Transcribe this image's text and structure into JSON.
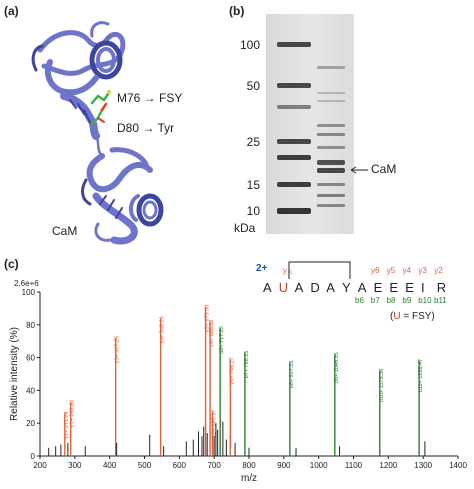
{
  "panels": {
    "a": "(a)",
    "b": "(b)",
    "c": "(c)"
  },
  "panel_a": {
    "protein_label": "CaM",
    "mutation1": "M76 → FSY",
    "mutation2": "D80 → Tyr",
    "colors": {
      "ribbon": "#6d74c9",
      "ribbon_dark": "#3e45a0",
      "side_carbon": "#3bb54a",
      "side_oxygen": "#e23b2e"
    }
  },
  "panel_b": {
    "marker_labels": [
      "100",
      "50",
      "25",
      "15",
      "10"
    ],
    "unit": "kDa",
    "band_label": "CaM"
  },
  "panel_c": {
    "sequence": [
      {
        "res": "A",
        "color": "#222222"
      },
      {
        "res": "U",
        "color": "#c0392b"
      },
      {
        "res": "A",
        "color": "#222222"
      },
      {
        "res": "D",
        "color": "#222222"
      },
      {
        "res": "A",
        "color": "#222222"
      },
      {
        "res": "Y",
        "color": "#222222"
      },
      {
        "res": "A",
        "color": "#222222"
      },
      {
        "res": "E",
        "color": "#222222"
      },
      {
        "res": "E",
        "color": "#222222"
      },
      {
        "res": "E",
        "color": "#222222"
      },
      {
        "res": "I",
        "color": "#222222"
      },
      {
        "res": "R",
        "color": "#222222"
      }
    ],
    "charge": "2+",
    "y_ion_top": "y₁₁",
    "y_ions": [
      "y6",
      "y5",
      "y4",
      "y3",
      "y2"
    ],
    "b_ions": [
      "b6",
      "b7",
      "b8",
      "b9",
      "b10",
      "b11"
    ],
    "legend_U": "U",
    "legend_rest": "= FSY)",
    "legend_open": "(",
    "colors": {
      "y": "#d9633a",
      "b": "#2e7d32",
      "other": "#222222",
      "charge": "#1f4fa3"
    }
  },
  "chart_data": {
    "type": "bar",
    "title": "",
    "xlabel": "m/z",
    "ylabel": "Relative intensity (%)",
    "scale_label": "2.6e+6",
    "xlim": [
      200,
      1400
    ],
    "ylim": [
      0,
      100
    ],
    "xticks": [
      200,
      300,
      400,
      500,
      600,
      700,
      800,
      900,
      1000,
      1100,
      1200,
      1300,
      1400
    ],
    "yticks": [
      0,
      20,
      40,
      60,
      80,
      100
    ],
    "peaks": [
      {
        "mz": 271.24,
        "y": 26,
        "label": "y1+ 271.24",
        "type": "y"
      },
      {
        "mz": 288.2,
        "y": 33,
        "label": "y1+ 288.20",
        "type": "y"
      },
      {
        "mz": 417.25,
        "y": 72,
        "label": "y3+ 417.25",
        "type": "y"
      },
      {
        "mz": 546.29,
        "y": 84,
        "label": "y4+ 546.29",
        "type": "y"
      },
      {
        "mz": 675.33,
        "y": 91,
        "label": "y5+ 675.33",
        "type": "y"
      },
      {
        "mz": 688.32,
        "y": 82,
        "label": "y6+ 688.32",
        "type": "y"
      },
      {
        "mz": 695.37,
        "y": 27,
        "label": "b5+ 695.37",
        "type": "y"
      },
      {
        "mz": 717.22,
        "y": 78,
        "label": "b6+ 717.22",
        "type": "b"
      },
      {
        "mz": 746.27,
        "y": 59,
        "label": "y6+ 746.27",
        "type": "y"
      },
      {
        "mz": 788.25,
        "y": 63,
        "label": "b7+ 788.25",
        "type": "b"
      },
      {
        "mz": 917.29,
        "y": 57,
        "label": "b8+ 917.29",
        "type": "b"
      },
      {
        "mz": 1046.35,
        "y": 62,
        "label": "b9+ 1046.35",
        "type": "b"
      },
      {
        "mz": 1175.38,
        "y": 52,
        "label": "b10+ 1175.38",
        "type": "b"
      },
      {
        "mz": 1288.47,
        "y": 58,
        "label": "b11+ 1288.47",
        "type": "b"
      },
      {
        "mz": 225,
        "y": 5,
        "label": "",
        "type": "other"
      },
      {
        "mz": 245,
        "y": 6,
        "label": "",
        "type": "other"
      },
      {
        "mz": 260,
        "y": 7,
        "label": "",
        "type": "other"
      },
      {
        "mz": 280,
        "y": 8,
        "label": "",
        "type": "other"
      },
      {
        "mz": 330,
        "y": 6,
        "label": "",
        "type": "other"
      },
      {
        "mz": 420,
        "y": 8,
        "label": "",
        "type": "other"
      },
      {
        "mz": 515,
        "y": 13,
        "label": "",
        "type": "other"
      },
      {
        "mz": 555,
        "y": 6,
        "label": "",
        "type": "other"
      },
      {
        "mz": 620,
        "y": 9,
        "label": "",
        "type": "other"
      },
      {
        "mz": 640,
        "y": 10,
        "label": "",
        "type": "other"
      },
      {
        "mz": 655,
        "y": 15,
        "label": "",
        "type": "other"
      },
      {
        "mz": 665,
        "y": 12,
        "label": "",
        "type": "other"
      },
      {
        "mz": 670,
        "y": 18,
        "label": "",
        "type": "other"
      },
      {
        "mz": 680,
        "y": 14,
        "label": "",
        "type": "other"
      },
      {
        "mz": 700,
        "y": 12,
        "label": "",
        "type": "other"
      },
      {
        "mz": 705,
        "y": 20,
        "label": "",
        "type": "other"
      },
      {
        "mz": 710,
        "y": 16,
        "label": "",
        "type": "other"
      },
      {
        "mz": 725,
        "y": 21,
        "label": "",
        "type": "other"
      },
      {
        "mz": 735,
        "y": 10,
        "label": "",
        "type": "other"
      },
      {
        "mz": 760,
        "y": 8,
        "label": "",
        "type": "other"
      },
      {
        "mz": 800,
        "y": 5,
        "label": "",
        "type": "other"
      },
      {
        "mz": 935,
        "y": 5,
        "label": "",
        "type": "other"
      },
      {
        "mz": 1060,
        "y": 6,
        "label": "",
        "type": "other"
      },
      {
        "mz": 1305,
        "y": 9,
        "label": "",
        "type": "other"
      }
    ]
  }
}
